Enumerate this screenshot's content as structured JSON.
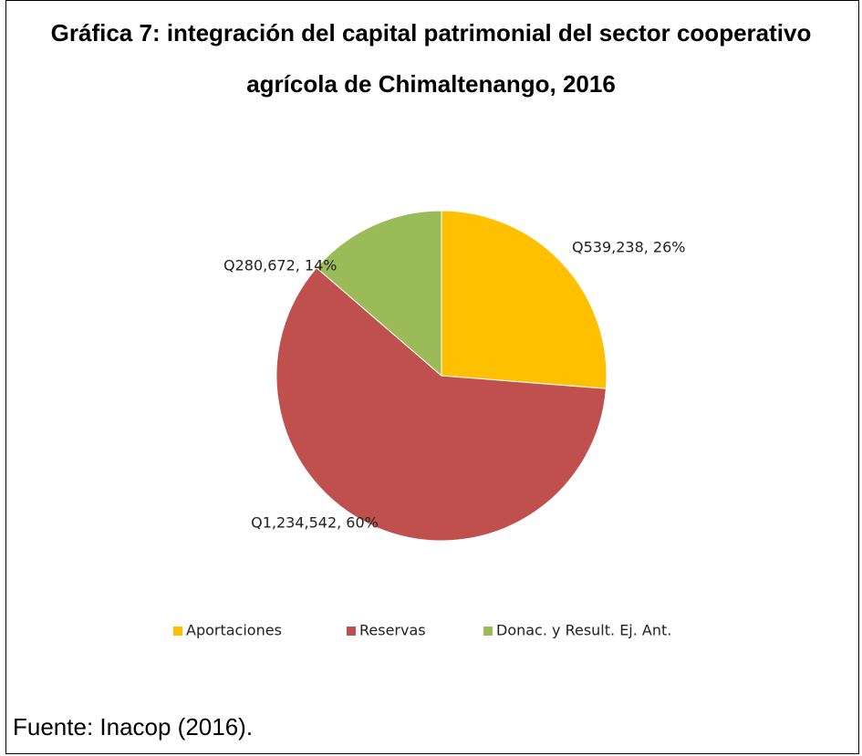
{
  "chart_data": {
    "type": "pie",
    "title": "Gráfica 7: integración del capital patrimonial del sector cooperativo agrícola de Chimaltenango, 2016",
    "categories": [
      "Aportaciones",
      "Reservas",
      "Donac. y Result. Ej. Ant."
    ],
    "values": [
      539238,
      1234542,
      280672
    ],
    "value_labels": [
      "Q539,238, 26%",
      "Q1,234,542, 60%",
      "Q280,672, 14%"
    ],
    "colors": [
      "#ffc000",
      "#c0504d",
      "#9bbb59"
    ],
    "legend": "bottom"
  },
  "source": "Fuente: Inacop (2016)."
}
